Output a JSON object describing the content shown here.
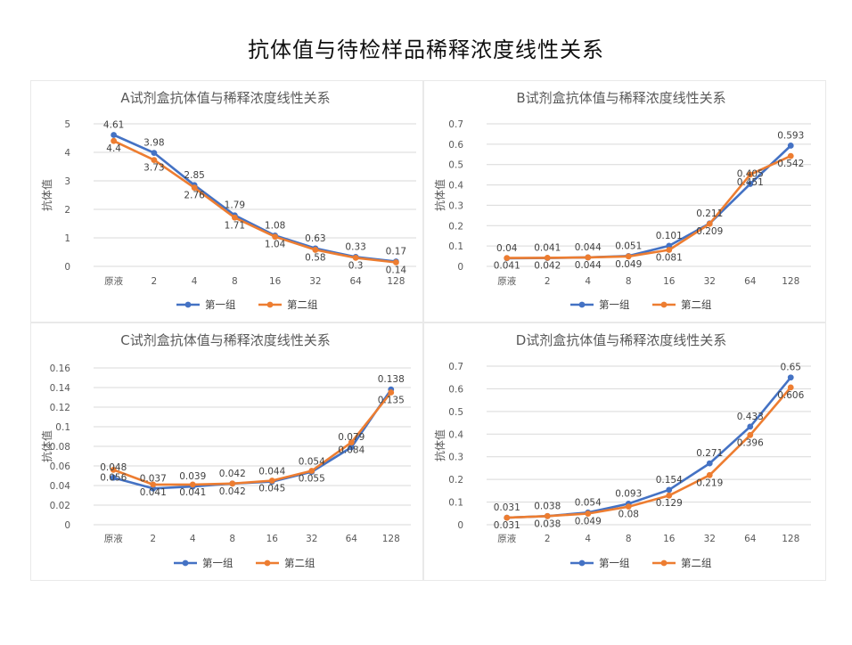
{
  "page_title": "抗体值与待检样品稀释浓度线性关系",
  "colors": {
    "series1": "#4472C4",
    "series2": "#ED7D31"
  },
  "chart_data": [
    {
      "type": "line",
      "title": "A试剂盒抗体值与稀释浓度线性关系",
      "ylabel": "抗体值",
      "xlabel": "",
      "categories": [
        "原液",
        "2",
        "4",
        "8",
        "16",
        "32",
        "64",
        "128"
      ],
      "ylim": [
        0,
        5
      ],
      "yticks": [
        "0",
        "1",
        "2",
        "3",
        "4",
        "5"
      ],
      "yticks_values": [
        0,
        1,
        2,
        3,
        4,
        5
      ],
      "legend": "bottom",
      "grid": true,
      "series": [
        {
          "name": "第一组",
          "values": [
            4.61,
            3.98,
            2.85,
            1.79,
            1.08,
            0.63,
            0.33,
            0.17
          ],
          "labels": [
            "4.61",
            "3.98",
            "2.85",
            "1.79",
            "1.08",
            "0.63",
            "0.33",
            "0.17"
          ]
        },
        {
          "name": "第二组",
          "values": [
            4.4,
            3.73,
            2.76,
            1.71,
            1.04,
            0.58,
            0.3,
            0.14
          ],
          "labels": [
            "4.4",
            "3.73",
            "2.76",
            "1.71",
            "1.04",
            "0.58",
            "0.3",
            "0.14"
          ]
        }
      ]
    },
    {
      "type": "line",
      "title": "B试剂盒抗体值与稀释浓度线性关系",
      "ylabel": "抗体值",
      "xlabel": "",
      "categories": [
        "原液",
        "2",
        "4",
        "8",
        "16",
        "32",
        "64",
        "128"
      ],
      "ylim": [
        0,
        0.7
      ],
      "yticks": [
        "0",
        "0.1",
        "0.2",
        "0.3",
        "0.4",
        "0.5",
        "0.6",
        "0.7"
      ],
      "yticks_values": [
        0,
        0.1,
        0.2,
        0.3,
        0.4,
        0.5,
        0.6,
        0.7
      ],
      "legend": "bottom",
      "grid": true,
      "series": [
        {
          "name": "第一组",
          "values": [
            0.04,
            0.041,
            0.044,
            0.051,
            0.101,
            0.211,
            0.405,
            0.593
          ],
          "labels": [
            "0.04",
            "0.041",
            "0.044",
            "0.051",
            "0.101",
            "0.211",
            "0.405",
            "0.593"
          ]
        },
        {
          "name": "第二组",
          "values": [
            0.041,
            0.042,
            0.044,
            0.049,
            0.081,
            0.209,
            0.451,
            0.542
          ],
          "labels": [
            "0.041",
            "0.042",
            "0.044",
            "0.049",
            "0.081",
            "0.209",
            "0.451",
            "0.542"
          ]
        }
      ]
    },
    {
      "type": "line",
      "title": "C试剂盒抗体值与稀释浓度线性关系",
      "ylabel": "抗体值",
      "xlabel": "",
      "categories": [
        "原液",
        "2",
        "4",
        "8",
        "16",
        "32",
        "64",
        "128"
      ],
      "ylim": [
        0,
        0.16
      ],
      "yticks": [
        "0",
        "0.02",
        "0.04",
        "0.06",
        "0.08",
        "0.1",
        "0.12",
        "0.14",
        "0.16"
      ],
      "yticks_values": [
        0,
        0.02,
        0.04,
        0.06,
        0.08,
        0.1,
        0.12,
        0.14,
        0.16
      ],
      "legend": "bottom",
      "grid": true,
      "series": [
        {
          "name": "第一组",
          "values": [
            0.048,
            0.037,
            0.039,
            0.042,
            0.044,
            0.054,
            0.079,
            0.138
          ],
          "labels": [
            "0.048",
            "0.037",
            "0.039",
            "0.042",
            "0.044",
            "0.054",
            "0.079",
            "0.138"
          ]
        },
        {
          "name": "第二组",
          "values": [
            0.056,
            0.041,
            0.041,
            0.042,
            0.045,
            0.055,
            0.084,
            0.135
          ],
          "labels": [
            "0.056",
            "0.041",
            "0.041",
            "0.042",
            "0.045",
            "0.055",
            "0.084",
            "0.135"
          ]
        }
      ]
    },
    {
      "type": "line",
      "title": "D试剂盒抗体值与稀释浓度线性关系",
      "ylabel": "抗体值",
      "xlabel": "",
      "categories": [
        "原液",
        "2",
        "4",
        "8",
        "16",
        "32",
        "64",
        "128"
      ],
      "ylim": [
        0,
        0.7
      ],
      "yticks": [
        "0",
        "0.1",
        "0.2",
        "0.3",
        "0.4",
        "0.5",
        "0.6",
        "0.7"
      ],
      "yticks_values": [
        0,
        0.1,
        0.2,
        0.3,
        0.4,
        0.5,
        0.6,
        0.7
      ],
      "legend": "bottom",
      "grid": true,
      "series": [
        {
          "name": "第一组",
          "values": [
            0.031,
            0.038,
            0.054,
            0.093,
            0.154,
            0.271,
            0.433,
            0.65
          ],
          "labels": [
            "0.031",
            "0.038",
            "0.054",
            "0.093",
            "0.154",
            "0.271",
            "0.433",
            "0.65"
          ]
        },
        {
          "name": "第二组",
          "values": [
            0.031,
            0.038,
            0.049,
            0.08,
            0.129,
            0.219,
            0.396,
            0.606
          ],
          "labels": [
            "0.031",
            "0.038",
            "0.049",
            "0.08",
            "0.129",
            "0.219",
            "0.396",
            "0.606"
          ]
        }
      ]
    }
  ]
}
